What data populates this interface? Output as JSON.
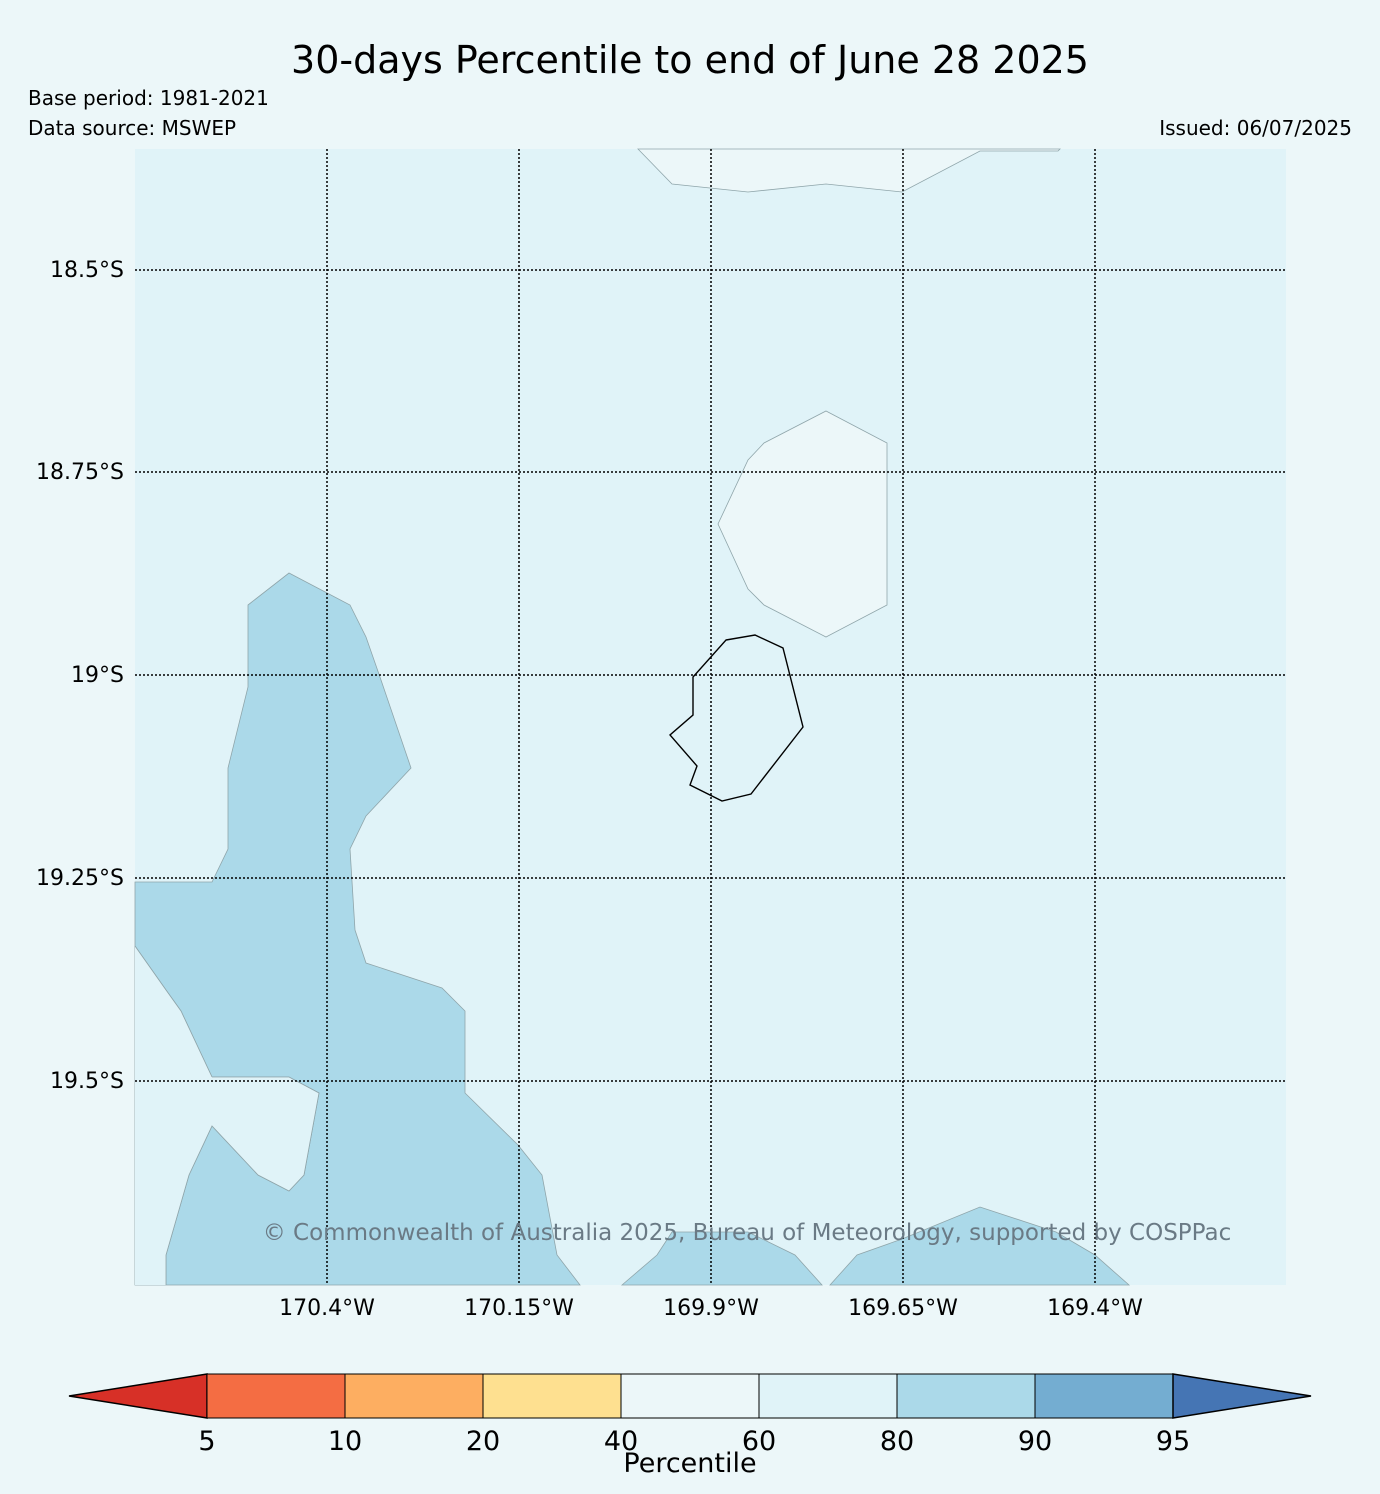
{
  "title": "30-days Percentile to end of June 28 2025",
  "base_period": "Base period: 1981-2021",
  "data_source": "Data source: MSWEP",
  "issued": "Issued: 06/07/2025",
  "copyright": "© Commonwealth of Australia 2025, Bureau of Meteorology, supported by COSPPac",
  "map": {
    "lat_labels": [
      "18.5°S",
      "18.75°S",
      "19°S",
      "19.25°S",
      "19.5°S"
    ],
    "lon_labels": [
      "170.4°W",
      "170.15°W",
      "169.9°W",
      "169.65°W",
      "169.4°W"
    ],
    "island_outline": "Niue"
  },
  "colorbar": {
    "label": "Percentile",
    "ticks": [
      "5",
      "10",
      "20",
      "40",
      "60",
      "80",
      "90",
      "95"
    ],
    "colors": [
      "#d73027",
      "#f46d43",
      "#fdae61",
      "#fee090",
      "#ecf7f9",
      "#e0f3f8",
      "#abd9e9",
      "#74add1",
      "#4575b4"
    ]
  },
  "colors": {
    "background": "#ecf7f9",
    "band_60_80": "#e0f3f8",
    "band_80_90": "#abd9e9",
    "band_40_60": "#ecf7f9",
    "copyright_text": "#6a7a85"
  }
}
